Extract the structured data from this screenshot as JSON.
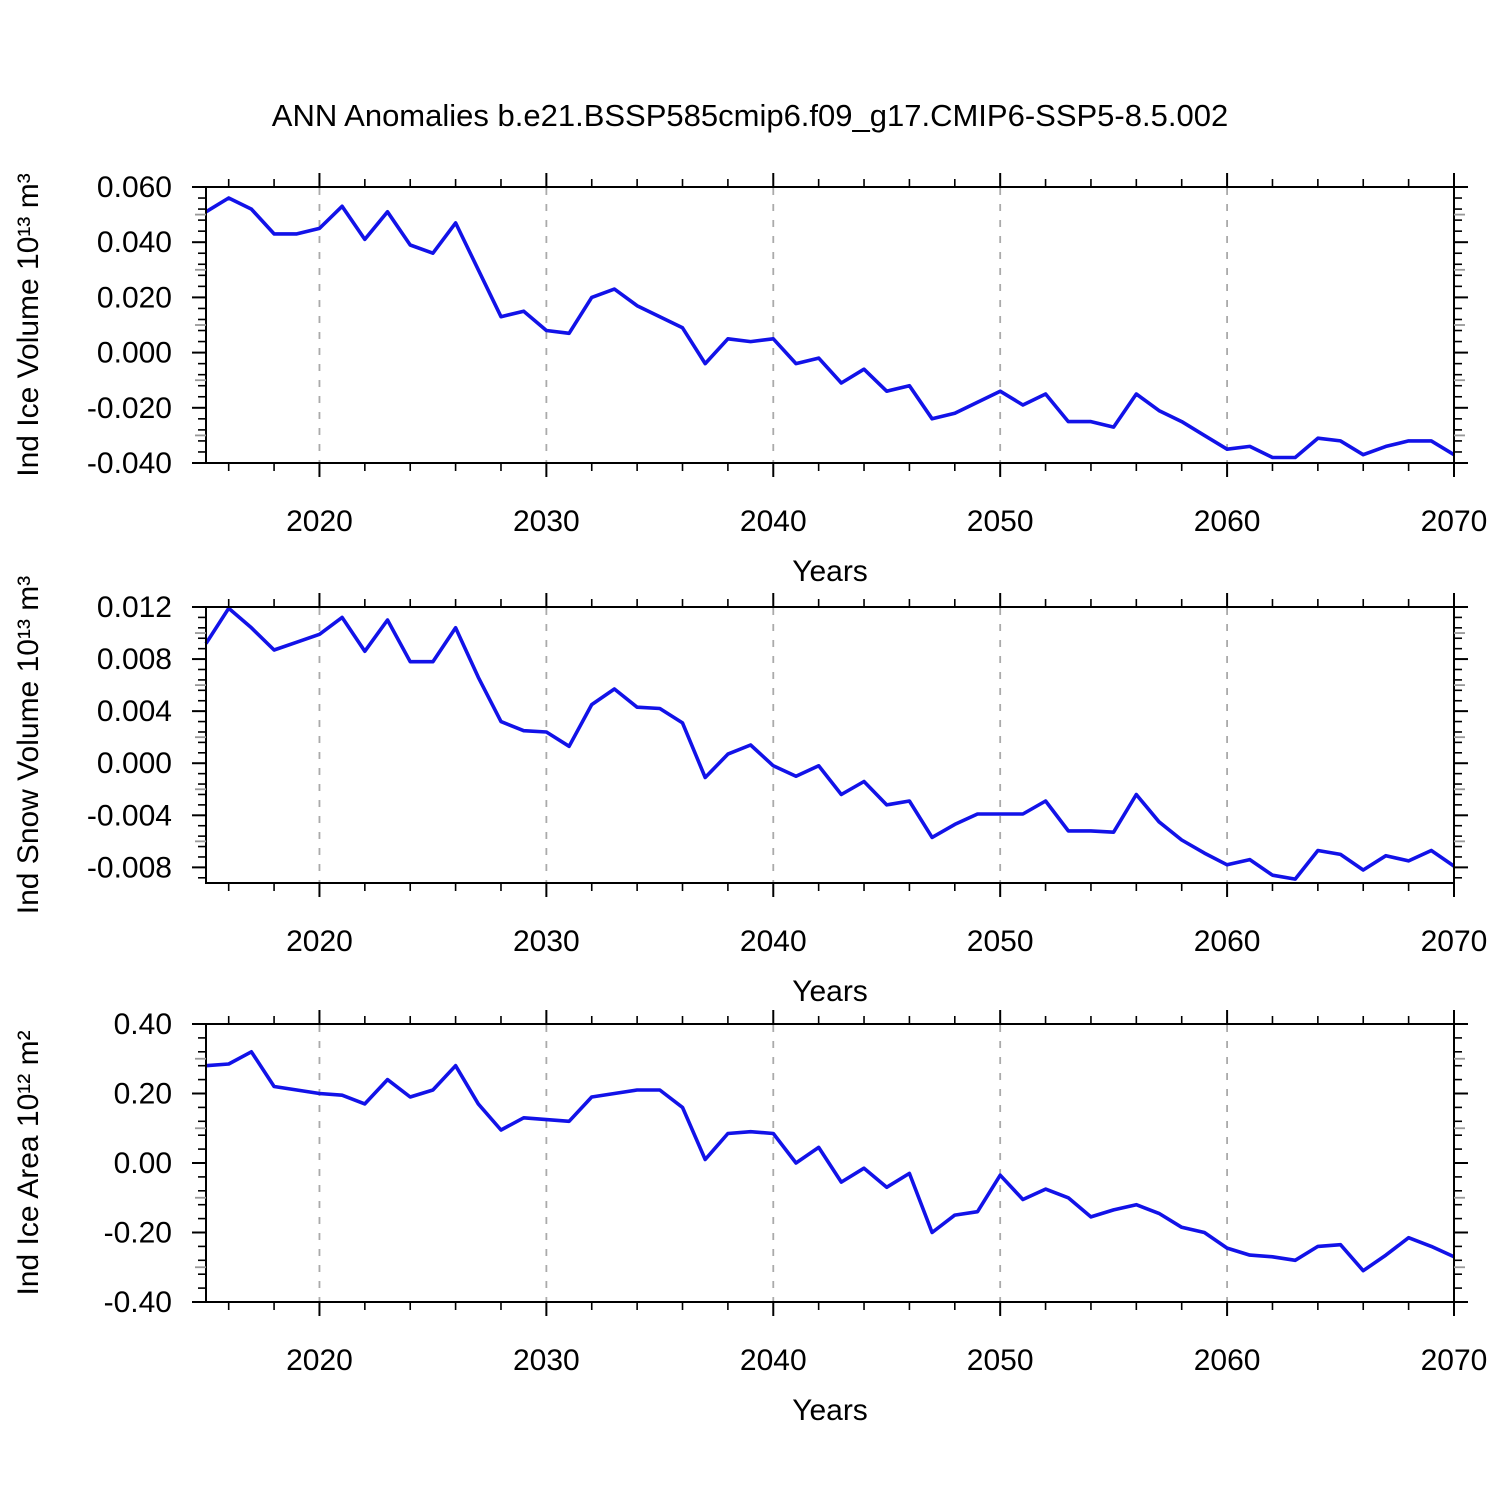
{
  "title": "ANN Anomalies b.e21.BSSP585cmip6.f09_g17.CMIP6-SSP5-8.5.002",
  "colors": {
    "line": "#1212e8",
    "axis": "#000000",
    "grid": "#aaaaaa",
    "half_tick": "#999999",
    "text": "#000000",
    "background": "#ffffff"
  },
  "x_axis": {
    "label": "Years",
    "min": 2015,
    "max": 2070,
    "major_ticks": [
      2020,
      2030,
      2040,
      2050,
      2060,
      2070
    ],
    "minor_step": 2,
    "gridlines": [
      2020,
      2030,
      2040,
      2050,
      2060
    ]
  },
  "chart_data": [
    {
      "type": "line",
      "name": "ind-ice-volume",
      "ylabel": "Ind Ice Volume 10¹³ m³",
      "xlabel": "Years",
      "x_start": 2015,
      "x_step": 1,
      "ylim": [
        -0.04,
        0.06
      ],
      "ytick_values": [
        0.06,
        0.04,
        0.02,
        0.0,
        -0.02,
        -0.04
      ],
      "ytick_labels": [
        "0.060",
        "0.040",
        "0.020",
        "0.000",
        "-0.020",
        "-0.040"
      ],
      "y_minor_step": 0.004,
      "legend": "none",
      "grid": "vertical-dashed",
      "values": [
        0.051,
        0.056,
        0.052,
        0.043,
        0.043,
        0.045,
        0.053,
        0.041,
        0.051,
        0.039,
        0.036,
        0.047,
        0.03,
        0.013,
        0.015,
        0.008,
        0.007,
        0.02,
        0.023,
        0.017,
        0.013,
        0.009,
        -0.004,
        0.005,
        0.004,
        0.005,
        -0.004,
        -0.002,
        -0.011,
        -0.006,
        -0.014,
        -0.012,
        -0.024,
        -0.022,
        -0.018,
        -0.014,
        -0.019,
        -0.015,
        -0.025,
        -0.025,
        -0.027,
        -0.015,
        -0.021,
        -0.025,
        -0.03,
        -0.035,
        -0.034,
        -0.038,
        -0.038,
        -0.031,
        -0.032,
        -0.037,
        -0.034,
        -0.032,
        -0.032,
        -0.037
      ]
    },
    {
      "type": "line",
      "name": "ind-snow-volume",
      "ylabel": "Ind Snow Volume 10¹³ m³",
      "xlabel": "Years",
      "x_start": 2015,
      "x_step": 1,
      "ylim": [
        -0.0092,
        0.012
      ],
      "ytick_values": [
        0.012,
        0.008,
        0.004,
        0.0,
        -0.004,
        -0.008
      ],
      "ytick_labels": [
        "0.012",
        "0.008",
        "0.004",
        "0.000",
        "-0.004",
        "-0.008"
      ],
      "y_minor_step": 0.0008,
      "legend": "none",
      "grid": "vertical-dashed",
      "values": [
        0.0092,
        0.0119,
        0.0104,
        0.0087,
        0.0093,
        0.0099,
        0.0112,
        0.0086,
        0.011,
        0.0078,
        0.0078,
        0.0104,
        0.0066,
        0.0032,
        0.0025,
        0.0024,
        0.0013,
        0.0045,
        0.0057,
        0.0043,
        0.0042,
        0.0031,
        -0.0011,
        0.0007,
        0.0014,
        -0.0002,
        -0.001,
        -0.0002,
        -0.0024,
        -0.0014,
        -0.0032,
        -0.0029,
        -0.0057,
        -0.0047,
        -0.0039,
        -0.0039,
        -0.0039,
        -0.0029,
        -0.0052,
        -0.0052,
        -0.0053,
        -0.0024,
        -0.0045,
        -0.0059,
        -0.0069,
        -0.0078,
        -0.0074,
        -0.0086,
        -0.0089,
        -0.0067,
        -0.007,
        -0.0082,
        -0.0071,
        -0.0075,
        -0.0067,
        -0.0079
      ]
    },
    {
      "type": "line",
      "name": "ind-ice-area",
      "ylabel": "Ind Ice Area 10¹² m²",
      "xlabel": "Years",
      "x_start": 2015,
      "x_step": 1,
      "ylim": [
        -0.4,
        0.4
      ],
      "ytick_values": [
        0.4,
        0.2,
        0.0,
        -0.2,
        -0.4
      ],
      "ytick_labels": [
        "0.40",
        "0.20",
        "0.00",
        "-0.20",
        "-0.40"
      ],
      "y_minor_step": 0.04,
      "legend": "none",
      "grid": "vertical-dashed",
      "values": [
        0.28,
        0.285,
        0.32,
        0.22,
        0.21,
        0.2,
        0.195,
        0.17,
        0.24,
        0.19,
        0.21,
        0.28,
        0.17,
        0.095,
        0.13,
        0.125,
        0.12,
        0.19,
        0.2,
        0.21,
        0.21,
        0.16,
        0.01,
        0.085,
        0.09,
        0.085,
        0.0,
        0.045,
        -0.055,
        -0.015,
        -0.07,
        -0.03,
        -0.2,
        -0.15,
        -0.14,
        -0.035,
        -0.105,
        -0.075,
        -0.1,
        -0.155,
        -0.135,
        -0.12,
        -0.145,
        -0.185,
        -0.2,
        -0.245,
        -0.265,
        -0.27,
        -0.28,
        -0.24,
        -0.235,
        -0.31,
        -0.265,
        -0.215,
        -0.24,
        -0.27
      ]
    }
  ]
}
